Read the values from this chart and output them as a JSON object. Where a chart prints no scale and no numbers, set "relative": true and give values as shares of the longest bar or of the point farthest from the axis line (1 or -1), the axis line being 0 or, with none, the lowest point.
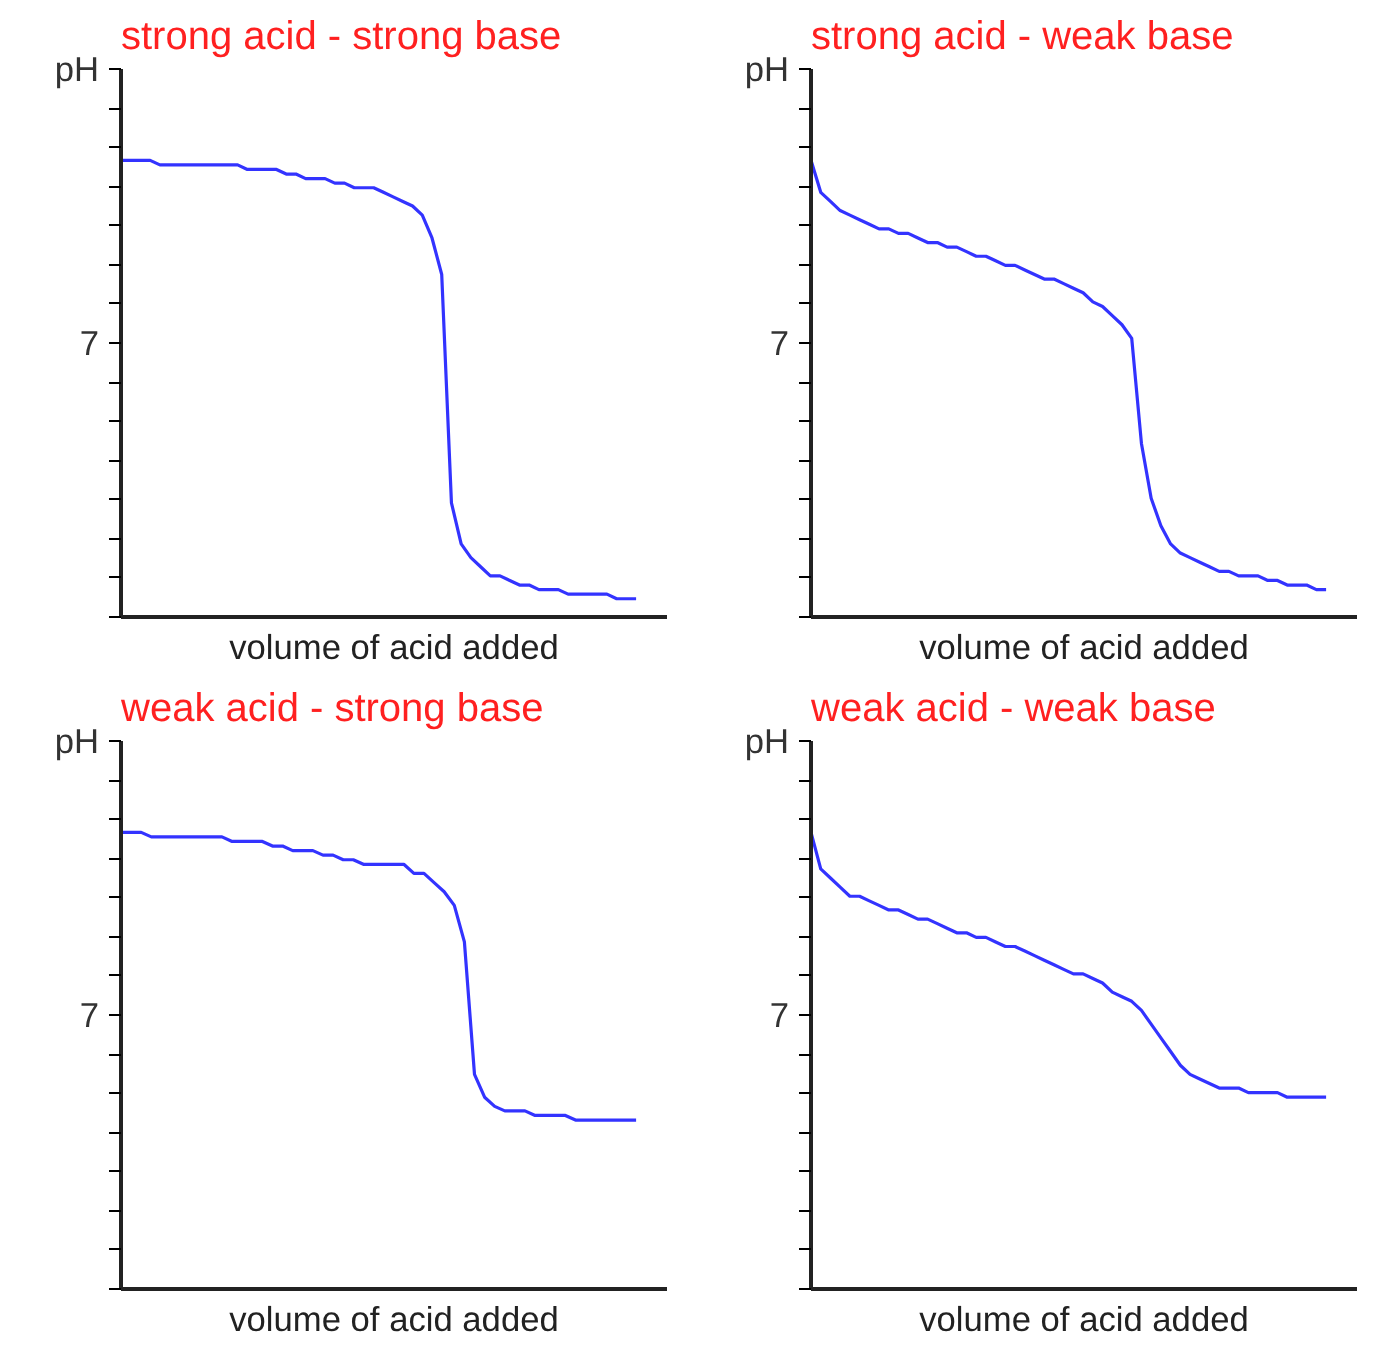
{
  "chart_data": [
    {
      "type": "line",
      "title": "strong acid - strong base",
      "xlabel": "volume of acid added",
      "ylabel": "pH",
      "annotations": [
        "7"
      ],
      "relative": true,
      "categories": [
        null,
        null,
        null,
        null,
        null,
        null,
        null,
        null,
        null,
        null,
        null,
        null,
        null,
        null,
        null,
        null,
        null,
        null,
        null,
        null,
        null,
        null,
        null,
        null,
        null,
        null,
        null,
        null,
        null,
        null,
        null,
        null,
        null,
        null,
        null,
        null,
        null,
        null,
        null,
        null,
        null,
        null,
        null,
        null,
        null,
        null,
        null,
        null,
        null,
        null,
        null,
        null,
        null,
        null
      ],
      "series": [
        {
          "color": "#3333ff",
          "values": [
            1.0,
            1.0,
            1.0,
            1.0,
            0.99,
            0.99,
            0.99,
            0.99,
            0.99,
            0.99,
            0.99,
            0.99,
            0.99,
            0.98,
            0.98,
            0.98,
            0.98,
            0.97,
            0.97,
            0.96,
            0.96,
            0.96,
            0.95,
            0.95,
            0.94,
            0.94,
            0.94,
            0.93,
            0.92,
            0.91,
            0.9,
            0.88,
            0.83,
            0.75,
            0.25,
            0.16,
            0.13,
            0.11,
            0.09,
            0.09,
            0.08,
            0.07,
            0.07,
            0.06,
            0.06,
            0.06,
            0.05,
            0.05,
            0.05,
            0.05,
            0.05,
            0.04,
            0.04,
            0.04
          ]
        }
      ]
    },
    {
      "type": "line",
      "title": "strong acid - weak base",
      "xlabel": "volume of acid added",
      "ylabel": "pH",
      "annotations": [
        "7"
      ],
      "relative": true,
      "categories": [
        null,
        null,
        null,
        null,
        null,
        null,
        null,
        null,
        null,
        null,
        null,
        null,
        null,
        null,
        null,
        null,
        null,
        null,
        null,
        null,
        null,
        null,
        null,
        null,
        null,
        null,
        null,
        null,
        null,
        null,
        null,
        null,
        null,
        null,
        null,
        null,
        null,
        null,
        null,
        null,
        null,
        null,
        null,
        null,
        null,
        null,
        null,
        null,
        null,
        null,
        null,
        null,
        null,
        null
      ],
      "series": [
        {
          "color": "#3333ff",
          "values": [
            1.0,
            0.93,
            0.91,
            0.89,
            0.88,
            0.87,
            0.86,
            0.85,
            0.85,
            0.84,
            0.84,
            0.83,
            0.82,
            0.82,
            0.81,
            0.81,
            0.8,
            0.79,
            0.79,
            0.78,
            0.77,
            0.77,
            0.76,
            0.75,
            0.74,
            0.74,
            0.73,
            0.72,
            0.71,
            0.69,
            0.68,
            0.66,
            0.64,
            0.61,
            0.38,
            0.26,
            0.2,
            0.16,
            0.14,
            0.13,
            0.12,
            0.11,
            0.1,
            0.1,
            0.09,
            0.09,
            0.09,
            0.08,
            0.08,
            0.07,
            0.07,
            0.07,
            0.06,
            0.06
          ]
        }
      ]
    },
    {
      "type": "line",
      "title": "weak acid - strong base",
      "xlabel": "volume of acid added",
      "ylabel": "pH",
      "annotations": [
        "7"
      ],
      "relative": true,
      "categories": [
        null,
        null,
        null,
        null,
        null,
        null,
        null,
        null,
        null,
        null,
        null,
        null,
        null,
        null,
        null,
        null,
        null,
        null,
        null,
        null,
        null,
        null,
        null,
        null,
        null,
        null,
        null,
        null,
        null,
        null,
        null,
        null,
        null,
        null,
        null,
        null,
        null,
        null,
        null,
        null,
        null,
        null,
        null,
        null,
        null,
        null,
        null,
        null,
        null,
        null,
        null,
        null
      ],
      "series": [
        {
          "color": "#3333ff",
          "values": [
            1.0,
            1.0,
            1.0,
            0.99,
            0.99,
            0.99,
            0.99,
            0.99,
            0.99,
            0.99,
            0.99,
            0.98,
            0.98,
            0.98,
            0.98,
            0.97,
            0.97,
            0.96,
            0.96,
            0.96,
            0.95,
            0.95,
            0.94,
            0.94,
            0.93,
            0.93,
            0.93,
            0.93,
            0.93,
            0.91,
            0.91,
            0.89,
            0.87,
            0.84,
            0.76,
            0.47,
            0.42,
            0.4,
            0.39,
            0.39,
            0.39,
            0.38,
            0.38,
            0.38,
            0.38,
            0.37,
            0.37,
            0.37,
            0.37,
            0.37,
            0.37,
            0.37
          ]
        }
      ]
    },
    {
      "type": "line",
      "title": "weak acid - weak base",
      "xlabel": "volume of acid added",
      "ylabel": "pH",
      "annotations": [
        "7"
      ],
      "relative": true,
      "categories": [
        null,
        null,
        null,
        null,
        null,
        null,
        null,
        null,
        null,
        null,
        null,
        null,
        null,
        null,
        null,
        null,
        null,
        null,
        null,
        null,
        null,
        null,
        null,
        null,
        null,
        null,
        null,
        null,
        null,
        null,
        null,
        null,
        null,
        null,
        null,
        null,
        null,
        null,
        null,
        null,
        null,
        null,
        null,
        null,
        null,
        null,
        null,
        null,
        null,
        null,
        null,
        null,
        null,
        null
      ],
      "series": [
        {
          "color": "#3333ff",
          "values": [
            1.0,
            0.92,
            0.9,
            0.88,
            0.86,
            0.86,
            0.85,
            0.84,
            0.83,
            0.83,
            0.82,
            0.81,
            0.81,
            0.8,
            0.79,
            0.78,
            0.78,
            0.77,
            0.77,
            0.76,
            0.75,
            0.75,
            0.74,
            0.73,
            0.72,
            0.71,
            0.7,
            0.69,
            0.69,
            0.68,
            0.67,
            0.65,
            0.64,
            0.63,
            0.61,
            0.58,
            0.55,
            0.52,
            0.49,
            0.47,
            0.46,
            0.45,
            0.44,
            0.44,
            0.44,
            0.43,
            0.43,
            0.43,
            0.43,
            0.42,
            0.42,
            0.42,
            0.42,
            0.42
          ]
        }
      ]
    }
  ]
}
